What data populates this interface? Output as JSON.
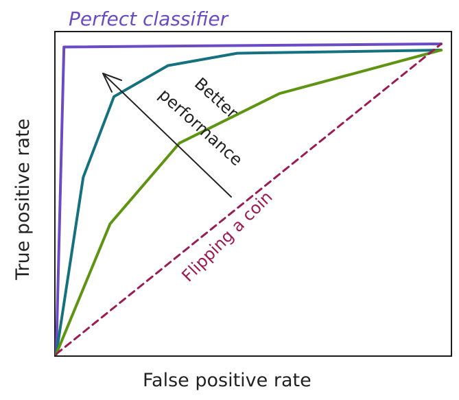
{
  "labels": {
    "perfect": "Perfect classifier",
    "better_line1": "Better",
    "better_line2": "performance",
    "coin": "Flipping a coin",
    "x_axis": "False positive rate",
    "y_axis": "True positive rate"
  },
  "colors": {
    "perfect": "#6a4bc4",
    "teal": "#16717e",
    "green": "#5f9412",
    "coin": "#9b1b53",
    "ink": "#222222",
    "frame": "#1a1a1a"
  },
  "chart_data": {
    "type": "line",
    "xlabel": "False positive rate",
    "ylabel": "True positive rate",
    "xlim": [
      0,
      1
    ],
    "ylim": [
      0,
      1
    ],
    "series": [
      {
        "name": "Perfect classifier",
        "color": "#6a4bc4",
        "x": [
          0,
          0.02,
          1
        ],
        "y": [
          0,
          0.99,
          1
        ]
      },
      {
        "color": "#16717e",
        "x": [
          0,
          0.07,
          0.15,
          0.29,
          0.47,
          1
        ],
        "y": [
          0,
          0.57,
          0.83,
          0.93,
          0.97,
          0.98
        ]
      },
      {
        "color": "#5f9412",
        "x": [
          0,
          0.14,
          0.32,
          0.58,
          1
        ],
        "y": [
          0,
          0.42,
          0.68,
          0.84,
          0.98
        ]
      },
      {
        "name": "Flipping a coin",
        "color": "#9b1b53",
        "x": [
          0,
          1
        ],
        "y": [
          0,
          1
        ],
        "dashed": true
      }
    ]
  }
}
